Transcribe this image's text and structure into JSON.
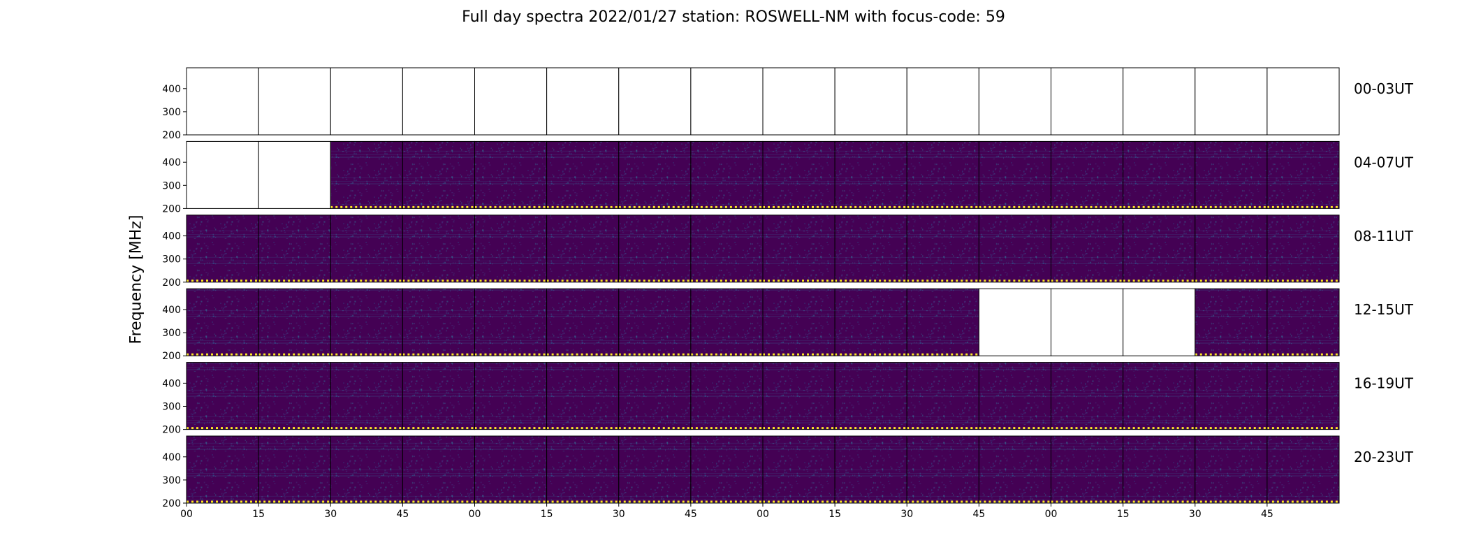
{
  "chart_data": {
    "type": "heatmap",
    "title": "Full day spectra 2022/01/27 station: ROSWELL-NM with focus-code: 59",
    "ylabel": "Frequency [MHz]",
    "xlabel": "",
    "colormap": "viridis",
    "colors": {
      "background": "#440154",
      "accent": "#fde725",
      "mid": "#2a788e",
      "frame": "#000000"
    },
    "y_ticks": [
      "400",
      "300",
      "200"
    ],
    "ylim": [
      200,
      490
    ],
    "x_ticks": [
      "00",
      "15",
      "30",
      "45",
      "00",
      "15",
      "30",
      "45",
      "00",
      "15",
      "30",
      "45",
      "00",
      "15",
      "30",
      "45"
    ],
    "panels_per_row": 16,
    "panel_minutes": 15,
    "rows": [
      {
        "label": "00-03UT",
        "data_panels": []
      },
      {
        "label": "04-07UT",
        "data_panels": [
          2,
          3,
          4,
          5,
          6,
          7,
          8,
          9,
          10,
          11,
          12,
          13,
          14,
          15
        ]
      },
      {
        "label": "08-11UT",
        "data_panels": [
          0,
          1,
          2,
          3,
          4,
          5,
          6,
          7,
          8,
          9,
          10,
          11,
          12,
          13,
          14,
          15
        ]
      },
      {
        "label": "12-15UT",
        "data_panels": [
          0,
          1,
          2,
          3,
          4,
          5,
          6,
          7,
          8,
          9,
          10,
          14,
          15
        ]
      },
      {
        "label": "16-19UT",
        "data_panels": [
          0,
          1,
          2,
          3,
          4,
          5,
          6,
          7,
          8,
          9,
          10,
          11,
          12,
          13,
          14,
          15
        ]
      },
      {
        "label": "20-23UT",
        "data_panels": [
          0,
          1,
          2,
          3,
          4,
          5,
          6,
          7,
          8,
          9,
          10,
          11,
          12,
          13,
          14,
          15
        ]
      }
    ],
    "grid": false,
    "legend": "none"
  }
}
